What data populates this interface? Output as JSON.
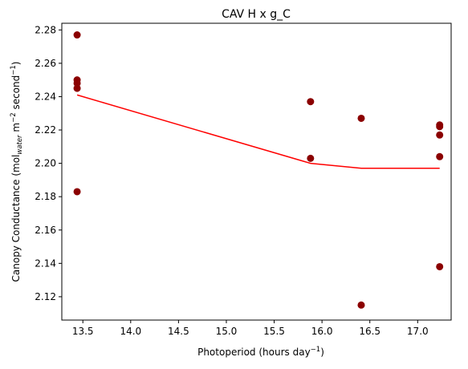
{
  "chart_data": {
    "type": "scatter",
    "title": "CAV H x g_C",
    "xlabel_main": "Photoperiod (hours day",
    "xlabel_sup": "−1",
    "xlabel_end": ")",
    "ylabel_main": "Canopy Conductance (mol",
    "ylabel_sub": "water",
    "ylabel_mid": " m",
    "ylabel_sup1": "−2",
    "ylabel_mid2": " second",
    "ylabel_sup2": "−1",
    "ylabel_end": ")",
    "xlim": [
      13.28,
      17.35
    ],
    "ylim": [
      2.106,
      2.284
    ],
    "xticks": [
      13.5,
      14.0,
      14.5,
      15.0,
      15.5,
      16.0,
      16.5,
      17.0
    ],
    "xtick_labels": [
      "13.5",
      "14.0",
      "14.5",
      "15.0",
      "15.5",
      "16.0",
      "16.5",
      "17.0"
    ],
    "yticks": [
      2.12,
      2.14,
      2.16,
      2.18,
      2.2,
      2.22,
      2.24,
      2.26,
      2.28
    ],
    "ytick_labels": [
      "2.12",
      "2.14",
      "2.16",
      "2.18",
      "2.20",
      "2.22",
      "2.24",
      "2.26",
      "2.28"
    ],
    "grid": false,
    "colors": {
      "points": "#8b0000",
      "line": "#ff0000"
    },
    "points": [
      {
        "x": 13.44,
        "y": 2.277
      },
      {
        "x": 13.44,
        "y": 2.25
      },
      {
        "x": 13.44,
        "y": 2.248
      },
      {
        "x": 13.44,
        "y": 2.245
      },
      {
        "x": 13.44,
        "y": 2.183
      },
      {
        "x": 15.88,
        "y": 2.237
      },
      {
        "x": 15.88,
        "y": 2.203
      },
      {
        "x": 16.41,
        "y": 2.227
      },
      {
        "x": 16.41,
        "y": 2.115
      },
      {
        "x": 17.23,
        "y": 2.223
      },
      {
        "x": 17.23,
        "y": 2.222
      },
      {
        "x": 17.23,
        "y": 2.217
      },
      {
        "x": 17.23,
        "y": 2.204
      },
      {
        "x": 17.23,
        "y": 2.138
      }
    ],
    "fit_line": [
      {
        "x": 13.44,
        "y": 2.241
      },
      {
        "x": 15.88,
        "y": 2.2
      },
      {
        "x": 16.41,
        "y": 2.197
      },
      {
        "x": 17.23,
        "y": 2.197
      }
    ]
  }
}
